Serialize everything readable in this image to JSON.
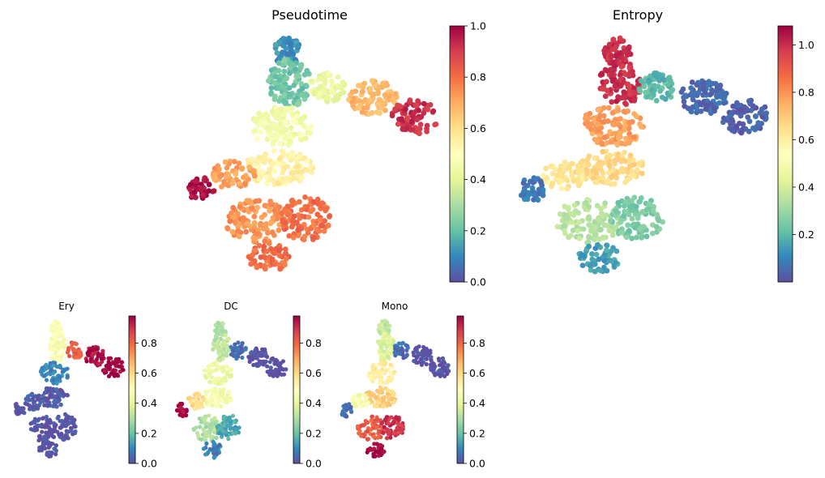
{
  "chart_data": [
    {
      "type": "scatter",
      "title": "Pseudotime",
      "shape": "full",
      "colorbar": {
        "min": 0.0,
        "max": 1.0,
        "ticks": [
          "0.0",
          "0.2",
          "0.4",
          "0.6",
          "0.8",
          "1.0"
        ],
        "tick_values": [
          0.0,
          0.2,
          0.4,
          0.6,
          0.8,
          1.0
        ]
      },
      "color_profile": {
        "spike": 0.12,
        "top": 0.22,
        "upper_mid": 0.45,
        "lower_mid": 0.55,
        "left_bottom": 0.72,
        "left_tip": 0.98,
        "lower_left": 0.74,
        "lower_right": 0.8,
        "bottom_tip": 0.8,
        "branch_start": 0.42,
        "branch_mid": 0.68,
        "branch_end": 0.92
      }
    },
    {
      "type": "scatter",
      "title": "Entropy",
      "shape": "full",
      "colorbar": {
        "min": 0.0,
        "max": 1.08,
        "ticks": [
          "0.2",
          "0.4",
          "0.6",
          "0.8",
          "1.0"
        ],
        "tick_values": [
          0.2,
          0.4,
          0.6,
          0.8,
          1.0
        ]
      },
      "color_profile": {
        "spike": 1.0,
        "top": 1.0,
        "upper_mid": 0.78,
        "lower_mid": 0.66,
        "left_bottom": 0.62,
        "left_tip": 0.08,
        "lower_left": 0.35,
        "lower_right": 0.25,
        "bottom_tip": 0.15,
        "branch_start": 0.2,
        "branch_mid": 0.05,
        "branch_end": 0.03
      }
    },
    {
      "type": "scatter",
      "title": "Ery",
      "shape": "small",
      "colorbar": {
        "min": 0.0,
        "max": 0.98,
        "ticks": [
          "0.0",
          "0.2",
          "0.4",
          "0.6",
          "0.8"
        ],
        "tick_values": [
          0.0,
          0.2,
          0.4,
          0.6,
          0.8
        ]
      },
      "color_profile": {
        "spike": 0.48,
        "top": 0.46,
        "upper_mid": 0.1,
        "lower_mid": 0.02,
        "left_bottom": 0.02,
        "left_tip": 0.0,
        "lower_left": 0.0,
        "lower_right": 0.0,
        "bottom_tip": 0.0,
        "branch_start": 0.82,
        "branch_mid": 0.96,
        "branch_end": 0.98
      }
    },
    {
      "type": "scatter",
      "title": "DC",
      "shape": "small",
      "colorbar": {
        "min": 0.0,
        "max": 0.98,
        "ticks": [
          "0.0",
          "0.2",
          "0.4",
          "0.6",
          "0.8"
        ],
        "tick_values": [
          0.0,
          0.2,
          0.4,
          0.6,
          0.8
        ]
      },
      "color_profile": {
        "spike": 0.3,
        "top": 0.32,
        "upper_mid": 0.42,
        "lower_mid": 0.45,
        "left_bottom": 0.6,
        "left_tip": 0.96,
        "lower_left": 0.3,
        "lower_right": 0.15,
        "bottom_tip": 0.08,
        "branch_start": 0.05,
        "branch_mid": 0.0,
        "branch_end": 0.0
      }
    },
    {
      "type": "scatter",
      "title": "Mono",
      "shape": "small",
      "colorbar": {
        "min": 0.0,
        "max": 0.98,
        "ticks": [
          "0.0",
          "0.2",
          "0.4",
          "0.6",
          "0.8"
        ],
        "tick_values": [
          0.0,
          0.2,
          0.4,
          0.6,
          0.8
        ]
      },
      "color_profile": {
        "spike": 0.34,
        "top": 0.38,
        "upper_mid": 0.55,
        "lower_mid": 0.62,
        "left_bottom": 0.45,
        "left_tip": 0.05,
        "lower_left": 0.82,
        "lower_right": 0.9,
        "bottom_tip": 0.98,
        "branch_start": 0.05,
        "branch_mid": 0.0,
        "branch_end": 0.0
      }
    }
  ],
  "colormap": {
    "name": "Spectral_r",
    "stops": [
      "#5e4fa2",
      "#3288bd",
      "#66c2a5",
      "#abdda4",
      "#e6f598",
      "#ffffbf",
      "#fee08b",
      "#fdae61",
      "#f46d43",
      "#d53e4f",
      "#9e0142"
    ]
  }
}
